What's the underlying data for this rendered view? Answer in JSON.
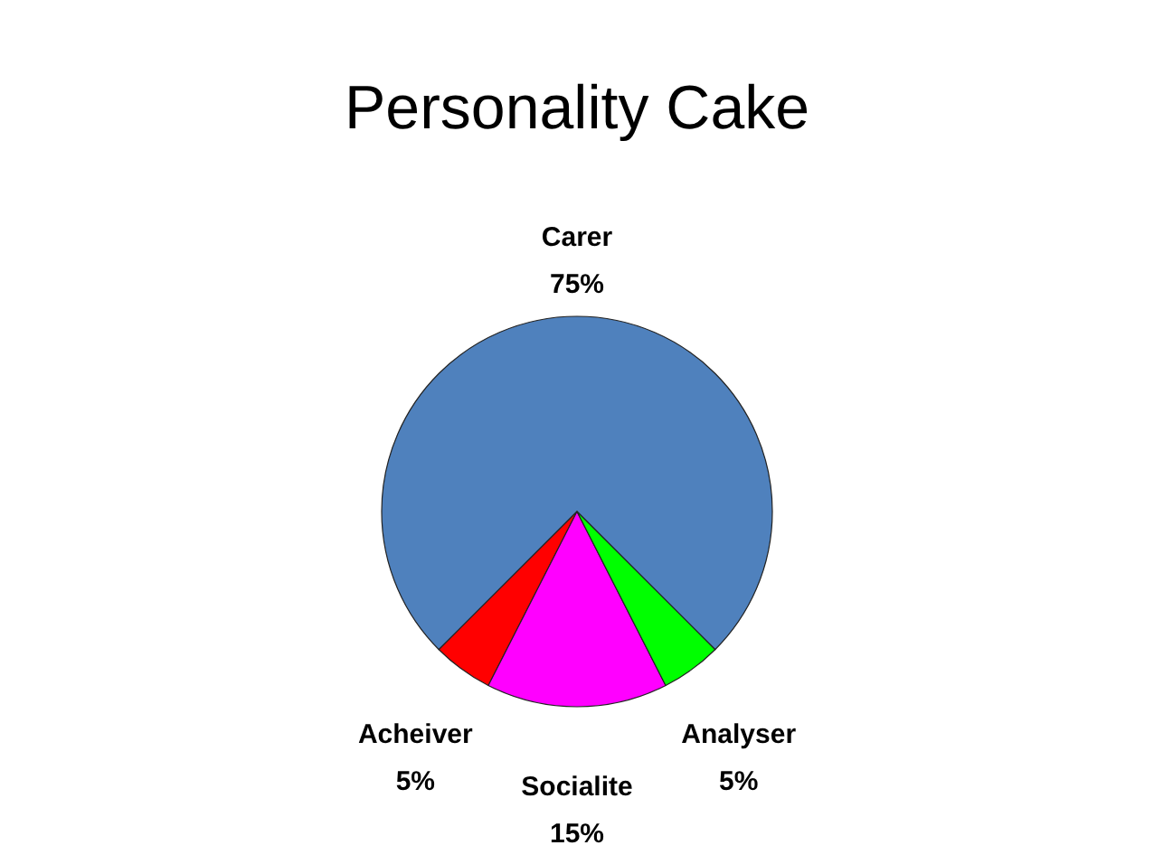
{
  "chart_data": {
    "type": "pie",
    "title": "Personality Cake",
    "categories": [
      "Carer",
      "Acheiver",
      "Socialite",
      "Analyser"
    ],
    "values": [
      75,
      5,
      15,
      5
    ],
    "colors": [
      "#4f81bd",
      "#ff0000",
      "#ff00ff",
      "#00ff00"
    ],
    "value_labels": [
      "75%",
      "5%",
      "15%",
      "5%"
    ]
  }
}
